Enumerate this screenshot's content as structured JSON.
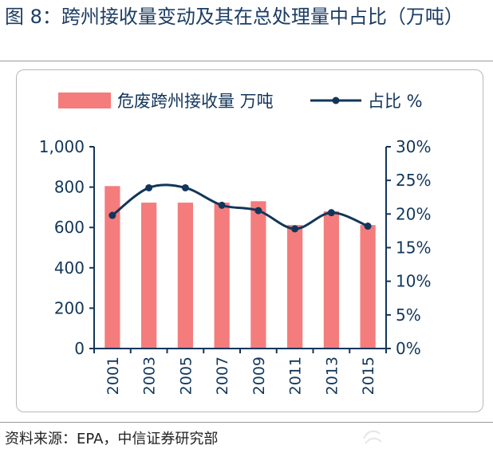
{
  "figure": {
    "title": "图 8：跨州接收量变动及其在总处理量中占比（万吨）",
    "source": "资料来源：EPA，中信证券研究部"
  },
  "chart_data": {
    "type": "bar+line",
    "categories": [
      "2001",
      "2003",
      "2005",
      "2007",
      "2009",
      "2011",
      "2013",
      "2015"
    ],
    "series": [
      {
        "name": "危废跨州接收量 万吨",
        "type": "bar",
        "axis": "left",
        "color": "#f47c7c",
        "values": [
          805,
          723,
          723,
          723,
          730,
          612,
          680,
          612
        ]
      },
      {
        "name": "占比 %",
        "type": "line",
        "axis": "right",
        "color": "#12365a",
        "values": [
          19.8,
          23.9,
          23.9,
          21.3,
          20.5,
          17.8,
          20.2,
          18.2
        ]
      }
    ],
    "y_left": {
      "min": 0,
      "max": 1000,
      "ticks": [
        "0",
        "200",
        "400",
        "600",
        "800",
        "1,000"
      ]
    },
    "y_right": {
      "min": 0,
      "max": 30,
      "ticks": [
        "0%",
        "5%",
        "10%",
        "15%",
        "20%",
        "25%",
        "30%"
      ]
    },
    "legend_position": "top",
    "grid": false
  }
}
